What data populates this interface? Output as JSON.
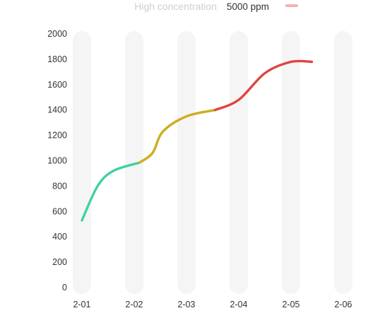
{
  "legend": {
    "label": "High concentration",
    "value": "5000 ppm",
    "swatch_color": "#f4b3b3"
  },
  "chart_data": {
    "type": "line",
    "x": [
      "2-01",
      "2-02",
      "2-03",
      "2-04",
      "2-05",
      "2-06"
    ],
    "ylim": [
      0,
      2000
    ],
    "yticks": [
      0,
      200,
      400,
      600,
      800,
      1000,
      1200,
      1400,
      1600,
      1800,
      2000
    ],
    "grid": "vertical column bands",
    "band_color": "#f5f5f5",
    "series": [
      {
        "color": "#3fd1a4",
        "points": [
          [
            0.0,
            530
          ],
          [
            0.3,
            800
          ],
          [
            0.6,
            920
          ],
          [
            1.1,
            985
          ]
        ]
      },
      {
        "color": "#cfad1f",
        "points": [
          [
            1.1,
            985
          ],
          [
            1.35,
            1060
          ],
          [
            1.55,
            1230
          ],
          [
            2.0,
            1350
          ],
          [
            2.55,
            1400
          ]
        ]
      },
      {
        "color": "#e0443f",
        "points": [
          [
            2.55,
            1400
          ],
          [
            3.0,
            1480
          ],
          [
            3.5,
            1690
          ],
          [
            4.0,
            1780
          ],
          [
            4.4,
            1780
          ]
        ]
      }
    ]
  }
}
